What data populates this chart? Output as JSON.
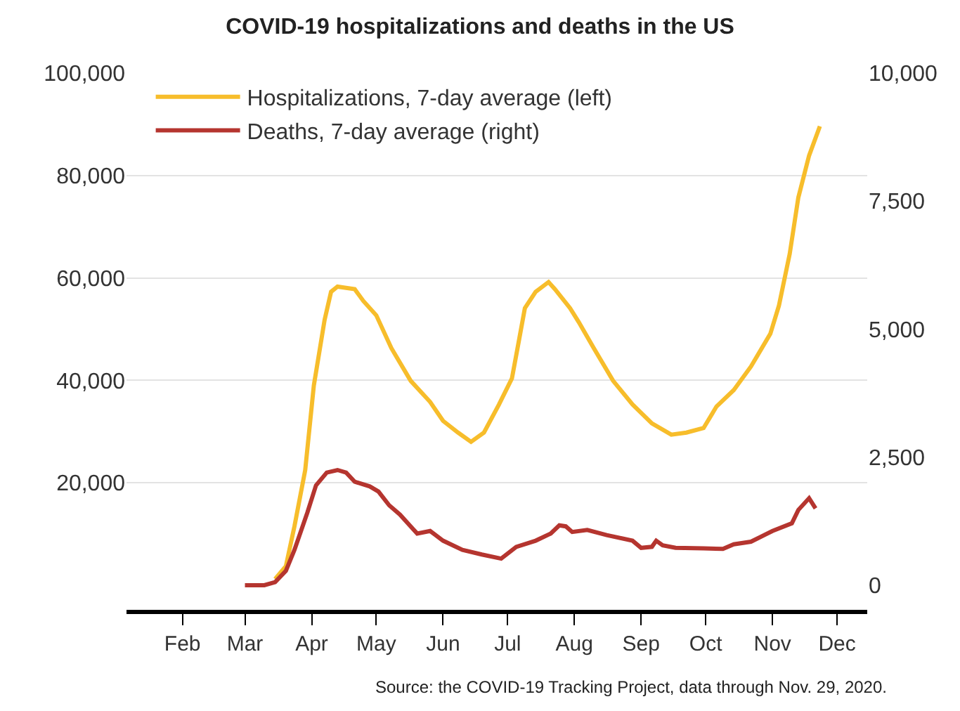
{
  "chart_data": {
    "type": "line",
    "title": "COVID-19 hospitalizations and deaths in the US",
    "annotations": [
      "Source: the COVID-19 Tracking Project, data through Nov. 29, 2020."
    ],
    "series": [
      {
        "name": "Hospitalizations, 7-day average (left)",
        "color": "#f7bd2b",
        "axis": "y",
        "x": [
          "2020-03-15",
          "2020-03-20",
          "2020-03-24",
          "2020-03-29",
          "2020-04-02",
          "2020-04-07",
          "2020-04-10",
          "2020-04-13",
          "2020-04-21",
          "2020-04-25",
          "2020-05-01",
          "2020-05-08",
          "2020-05-17",
          "2020-05-26",
          "2020-06-01",
          "2020-06-08",
          "2020-06-14",
          "2020-06-20",
          "2020-06-27",
          "2020-07-03",
          "2020-07-06",
          "2020-07-09",
          "2020-07-14",
          "2020-07-20",
          "2020-07-23",
          "2020-07-30",
          "2020-08-03",
          "2020-08-10",
          "2020-08-19",
          "2020-08-28",
          "2020-09-06",
          "2020-09-15",
          "2020-09-22",
          "2020-09-30",
          "2020-10-06",
          "2020-10-14",
          "2020-10-22",
          "2020-10-31",
          "2020-11-04",
          "2020-11-09",
          "2020-11-13",
          "2020-11-18",
          "2020-11-23"
        ],
        "values": [
          1200,
          3700,
          11500,
          22500,
          39000,
          51800,
          57300,
          58300,
          57800,
          55500,
          52700,
          46300,
          39900,
          35800,
          32100,
          29800,
          28000,
          29800,
          35300,
          40400,
          47200,
          54100,
          57300,
          59200,
          57800,
          54100,
          51400,
          46300,
          39900,
          35300,
          31600,
          29400,
          29800,
          30700,
          34900,
          38100,
          42700,
          49100,
          54600,
          64700,
          75700,
          83900,
          89600
        ]
      },
      {
        "name": "Deaths, 7-day average (right)",
        "color": "#b5352f",
        "axis": "y2",
        "x": [
          "2020-03-01",
          "2020-03-10",
          "2020-03-15",
          "2020-03-20",
          "2020-03-24",
          "2020-03-30",
          "2020-04-03",
          "2020-04-08",
          "2020-04-13",
          "2020-04-17",
          "2020-04-21",
          "2020-04-28",
          "2020-05-02",
          "2020-05-07",
          "2020-05-12",
          "2020-05-18",
          "2020-05-20",
          "2020-05-26",
          "2020-06-01",
          "2020-06-10",
          "2020-06-19",
          "2020-06-28",
          "2020-07-05",
          "2020-07-14",
          "2020-07-21",
          "2020-07-25",
          "2020-07-28",
          "2020-07-31",
          "2020-08-07",
          "2020-08-16",
          "2020-08-28",
          "2020-09-01",
          "2020-09-06",
          "2020-09-08",
          "2020-09-11",
          "2020-09-17",
          "2020-09-30",
          "2020-10-09",
          "2020-10-14",
          "2020-10-22",
          "2020-11-01",
          "2020-11-10",
          "2020-11-13",
          "2020-11-18",
          "2020-11-21"
        ],
        "values": [
          0,
          0,
          60,
          280,
          690,
          1420,
          1950,
          2200,
          2250,
          2200,
          2020,
          1930,
          1830,
          1560,
          1380,
          1100,
          1010,
          1060,
          870,
          690,
          600,
          520,
          750,
          870,
          1010,
          1170,
          1150,
          1040,
          1080,
          980,
          870,
          730,
          750,
          870,
          780,
          730,
          720,
          710,
          800,
          850,
          1060,
          1210,
          1470,
          1700,
          1500
        ]
      }
    ],
    "xlim": [
      "2020-01-06",
      "2020-12-15"
    ],
    "xticks": [
      {
        "value": "2020-02-01",
        "label": "Feb"
      },
      {
        "value": "2020-03-01",
        "label": "Mar"
      },
      {
        "value": "2020-04-01",
        "label": "Apr"
      },
      {
        "value": "2020-05-01",
        "label": "May"
      },
      {
        "value": "2020-06-01",
        "label": "Jun"
      },
      {
        "value": "2020-07-01",
        "label": "Jul"
      },
      {
        "value": "2020-08-01",
        "label": "Aug"
      },
      {
        "value": "2020-09-01",
        "label": "Sep"
      },
      {
        "value": "2020-10-01",
        "label": "Oct"
      },
      {
        "value": "2020-11-01",
        "label": "Nov"
      },
      {
        "value": "2020-12-01",
        "label": "Dec"
      }
    ],
    "ylim": [
      -4800,
      100000
    ],
    "yticks": [
      {
        "value": 20000,
        "label": "20,000"
      },
      {
        "value": 40000,
        "label": "40,000"
      },
      {
        "value": 60000,
        "label": "60,000"
      },
      {
        "value": 80000,
        "label": "80,000"
      },
      {
        "value": 100000,
        "label": "100,000"
      }
    ],
    "y2lim": [
      -480,
      10000
    ],
    "y2ticks": [
      {
        "value": 0,
        "label": "0"
      },
      {
        "value": 2500,
        "label": "2,500"
      },
      {
        "value": 5000,
        "label": "5,000"
      },
      {
        "value": 7500,
        "label": "7,500"
      },
      {
        "value": 10000,
        "label": "10,000"
      }
    ],
    "grid": "y",
    "legend": "top left",
    "line_style": "solid",
    "marker": "none"
  }
}
